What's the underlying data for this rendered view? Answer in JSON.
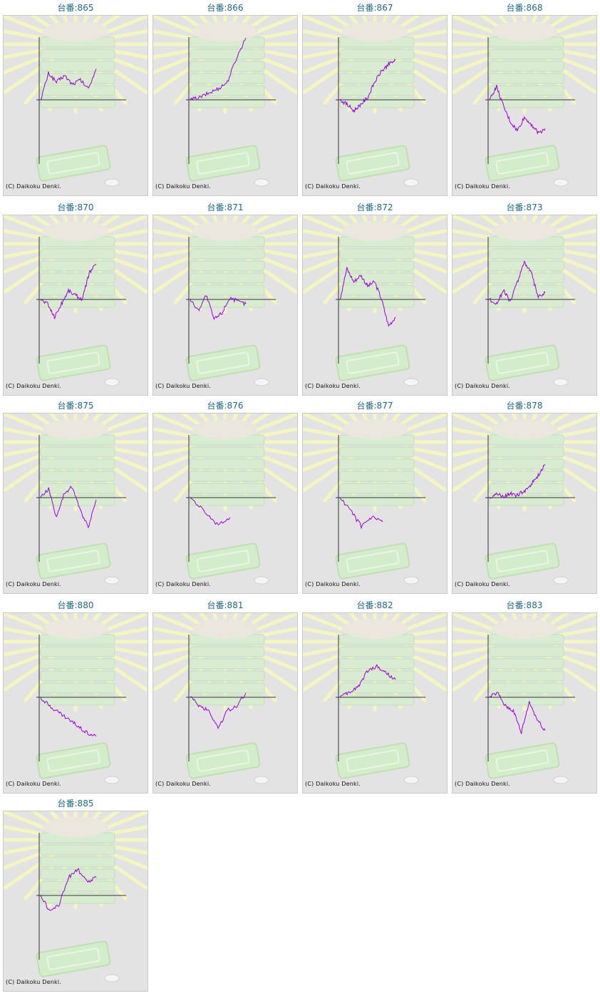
{
  "copyright": "(C) Daikoku Denki.",
  "colors": {
    "line": "#9b00d9",
    "axis": "#333333",
    "title": "#1f6a8a",
    "panel_bg": "#e3e3e3"
  },
  "chart_data": [
    {
      "type": "line",
      "title": "台番:865",
      "series": [
        {
          "values": [
            0,
            60,
            40,
            55,
            35,
            45,
            25,
            70
          ]
        }
      ]
    },
    {
      "type": "line",
      "title": "台番:866",
      "series": [
        {
          "values": [
            0,
            5,
            15,
            25,
            40,
            95,
            140
          ]
        }
      ]
    },
    {
      "type": "line",
      "title": "台番:867",
      "series": [
        {
          "values": [
            0,
            -10,
            -25,
            -10,
            5,
            40,
            65,
            80,
            90
          ]
        }
      ]
    },
    {
      "type": "line",
      "title": "台番:868",
      "series": [
        {
          "values": [
            0,
            30,
            -15,
            -50,
            -70,
            -40,
            -55,
            -75,
            -65
          ]
        }
      ]
    },
    {
      "type": "line",
      "title": "台番:870",
      "series": [
        {
          "values": [
            0,
            -10,
            -40,
            -10,
            20,
            10,
            0,
            60,
            80
          ]
        }
      ]
    },
    {
      "type": "line",
      "title": "台番:871",
      "series": [
        {
          "values": [
            0,
            -25,
            10,
            -45,
            -30,
            5,
            -5,
            -10
          ]
        }
      ]
    },
    {
      "type": "line",
      "title": "台番:872",
      "series": [
        {
          "values": [
            0,
            70,
            40,
            55,
            30,
            40,
            0,
            -60,
            -40
          ]
        }
      ]
    },
    {
      "type": "line",
      "title": "台番:873",
      "series": [
        {
          "values": [
            0,
            -10,
            20,
            -5,
            40,
            85,
            60,
            5,
            15
          ]
        }
      ]
    },
    {
      "type": "line",
      "title": "台番:875",
      "series": [
        {
          "values": [
            0,
            20,
            -45,
            10,
            25,
            -30,
            -65,
            -5
          ]
        }
      ]
    },
    {
      "type": "line",
      "title": "台番:876",
      "series": [
        {
          "values": [
            0,
            -30,
            -60,
            -45
          ]
        }
      ]
    },
    {
      "type": "line",
      "title": "台番:877",
      "series": [
        {
          "values": [
            0,
            -30,
            -65,
            -45,
            -55
          ]
        }
      ]
    },
    {
      "type": "line",
      "title": "台番:878",
      "series": [
        {
          "values": [
            0,
            8,
            2,
            10,
            5,
            15,
            30,
            50,
            75
          ]
        }
      ]
    },
    {
      "type": "line",
      "title": "台番:880",
      "series": [
        {
          "values": [
            0,
            -20,
            -35,
            -50,
            -65,
            -80,
            -88
          ]
        }
      ]
    },
    {
      "type": "line",
      "title": "台番:881",
      "series": [
        {
          "values": [
            0,
            -20,
            -30,
            -70,
            -30,
            -20,
            10
          ]
        }
      ]
    },
    {
      "type": "line",
      "title": "台番:882",
      "series": [
        {
          "values": [
            0,
            10,
            25,
            60,
            70,
            55,
            40
          ]
        }
      ]
    },
    {
      "type": "line",
      "title": "台番:883",
      "series": [
        {
          "values": [
            0,
            10,
            -20,
            -30,
            -80,
            -10,
            -50,
            -75
          ]
        }
      ]
    },
    {
      "type": "line",
      "title": "台番:885",
      "series": [
        {
          "values": [
            0,
            -35,
            -20,
            40,
            60,
            30,
            40
          ]
        }
      ]
    }
  ]
}
